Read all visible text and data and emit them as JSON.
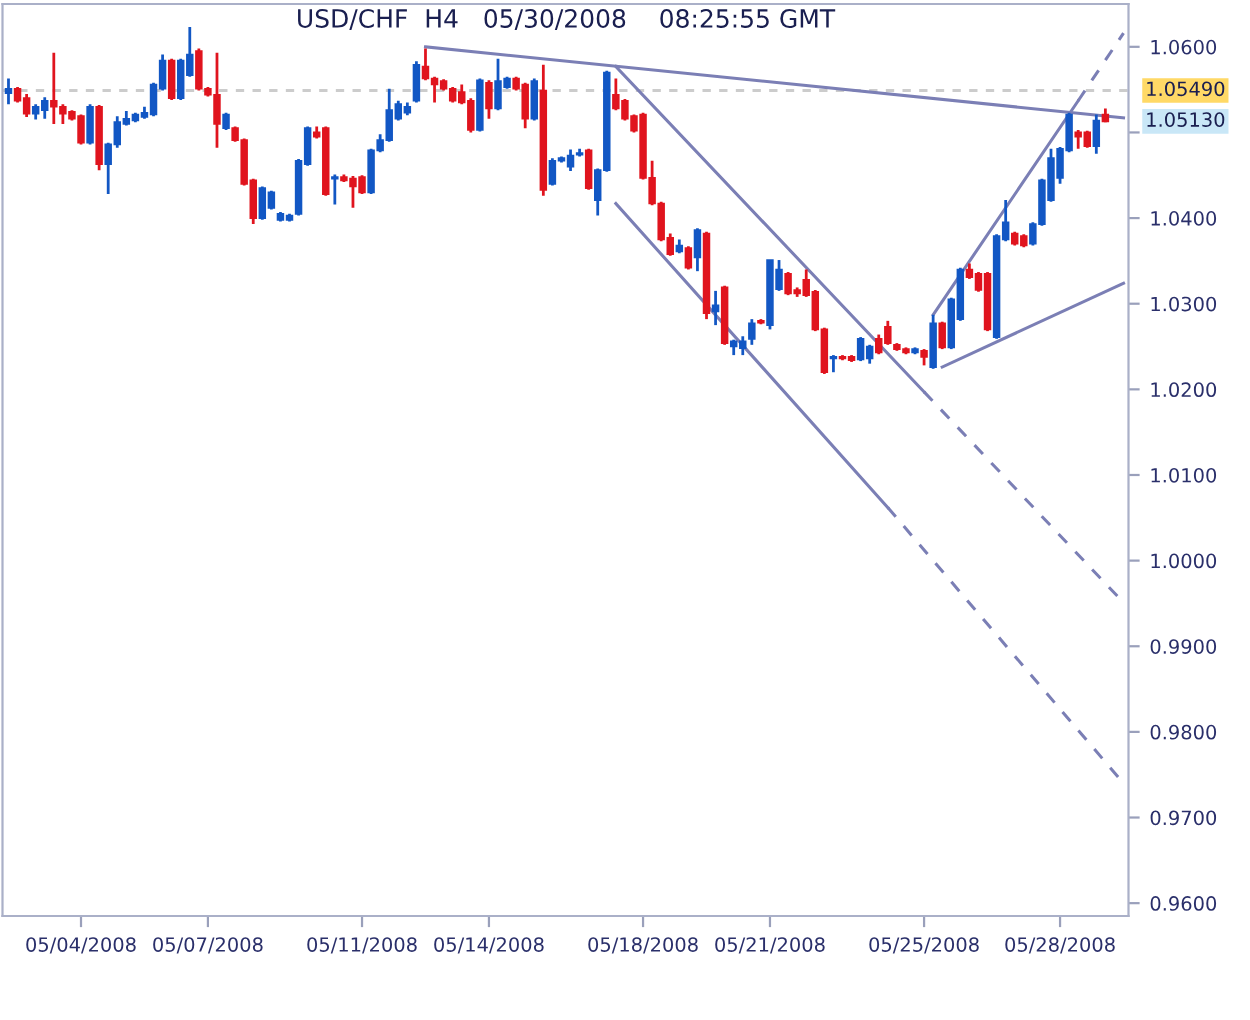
{
  "chart_data": {
    "type": "candlestick",
    "title": "USD/CHF  H4   05/30/2008    08:25:55 GMT",
    "categories": [
      null,
      null,
      null,
      null,
      null,
      null,
      null,
      null,
      "05/04/2008",
      null,
      null,
      null,
      null,
      null,
      null,
      null,
      null,
      null,
      null,
      null,
      null,
      null,
      "05/07/2008",
      null,
      null,
      null,
      null,
      null,
      null,
      null,
      null,
      null,
      null,
      null,
      null,
      null,
      null,
      null,
      null,
      "05/11/2008",
      null,
      null,
      null,
      null,
      null,
      null,
      null,
      null,
      null,
      null,
      null,
      null,
      null,
      "05/14/2008",
      null,
      null,
      null,
      null,
      null,
      null,
      null,
      null,
      null,
      null,
      null,
      null,
      null,
      null,
      null,
      null,
      "05/18/2008",
      null,
      null,
      null,
      null,
      null,
      null,
      null,
      null,
      null,
      null,
      null,
      null,
      null,
      "05/21/2008",
      null,
      null,
      null,
      null,
      null,
      null,
      null,
      null,
      null,
      null,
      null,
      null,
      null,
      null,
      null,
      null,
      "05/25/2008",
      null,
      null,
      null,
      null,
      null,
      null,
      null,
      null,
      null,
      null,
      null,
      null,
      null,
      null,
      "05/28/2008",
      null,
      null,
      null,
      null,
      null,
      null,
      null
    ],
    "ylim": [
      0.9585,
      1.065
    ],
    "yticks": [
      {
        "value": 0.96,
        "label": "0.9600"
      },
      {
        "value": 0.97,
        "label": "0.9700"
      },
      {
        "value": 0.98,
        "label": "0.9800"
      },
      {
        "value": 0.99,
        "label": "0.9900"
      },
      {
        "value": 1.0,
        "label": "1.0000"
      },
      {
        "value": 1.01,
        "label": "1.0100"
      },
      {
        "value": 1.02,
        "label": "1.0200"
      },
      {
        "value": 1.03,
        "label": "1.0300"
      },
      {
        "value": 1.04,
        "label": "1.0400"
      },
      {
        "value": 1.05,
        "label": null
      },
      {
        "value": 1.06,
        "label": "1.0600"
      }
    ],
    "ref_lines": [
      {
        "axis": "y",
        "value": 1.0549,
        "label": "1.05490",
        "color": "#cccccc",
        "line_style": "dashed"
      }
    ],
    "annotations": [
      "1.05130"
    ],
    "series": [
      {
        "type": "candlestick",
        "ohlc": [
          [
            1.0546,
            1.0563,
            1.0533,
            1.0551
          ],
          [
            1.0551,
            1.0553,
            1.0535,
            1.0537
          ],
          [
            1.054,
            1.0545,
            1.0518,
            1.0522
          ],
          [
            1.0522,
            1.0533,
            1.0515,
            1.053
          ],
          [
            1.0526,
            1.0541,
            1.0516,
            1.0537
          ],
          [
            1.0537,
            1.0593,
            1.051,
            1.053
          ],
          [
            1.053,
            1.0533,
            1.051,
            1.0522
          ],
          [
            1.0524,
            1.0526,
            1.0514,
            1.0516
          ],
          [
            1.0519,
            1.0521,
            1.0486,
            1.0488
          ],
          [
            1.0488,
            1.0533,
            1.0486,
            1.053
          ],
          [
            1.053,
            1.0532,
            1.0456,
            1.0463
          ],
          [
            1.0463,
            1.0488,
            1.0428,
            1.0486
          ],
          [
            1.0486,
            1.0519,
            1.0482,
            1.0512
          ],
          [
            1.051,
            1.0525,
            1.0508,
            1.0516
          ],
          [
            1.0514,
            1.0523,
            1.0512,
            1.0521
          ],
          [
            1.0518,
            1.053,
            1.0516,
            1.0523
          ],
          [
            1.0521,
            1.0558,
            1.0519,
            1.0556
          ],
          [
            1.0551,
            1.0591,
            1.0549,
            1.0584
          ],
          [
            1.0584,
            1.0586,
            1.0538,
            1.054
          ],
          [
            1.054,
            1.0586,
            1.0538,
            1.0584
          ],
          [
            1.0567,
            1.0623,
            1.0565,
            1.0591
          ],
          [
            1.0595,
            1.0598,
            1.0549,
            1.0551
          ],
          [
            1.0551,
            1.0553,
            1.0542,
            1.0544
          ],
          [
            1.0544,
            1.0593,
            1.0482,
            1.051
          ],
          [
            1.0505,
            1.0523,
            1.0503,
            1.0521
          ],
          [
            1.0505,
            1.0507,
            1.0489,
            1.0491
          ],
          [
            1.0491,
            1.0493,
            1.0438,
            1.044
          ],
          [
            1.0444,
            1.0446,
            1.0393,
            1.04
          ],
          [
            1.04,
            1.0437,
            1.0398,
            1.0435
          ],
          [
            1.0412,
            1.0432,
            1.041,
            1.043
          ],
          [
            1.0398,
            1.0407,
            1.0396,
            1.0405
          ],
          [
            1.0398,
            1.0405,
            1.0396,
            1.0403
          ],
          [
            1.0405,
            1.0469,
            1.0403,
            1.0467
          ],
          [
            1.0463,
            1.0507,
            1.0461,
            1.0505
          ],
          [
            1.05,
            1.0507,
            1.0493,
            1.0495
          ],
          [
            1.0505,
            1.0507,
            1.0426,
            1.0428
          ],
          [
            1.0446,
            1.0451,
            1.0416,
            1.0448
          ],
          [
            1.0448,
            1.0451,
            1.0442,
            1.0444
          ],
          [
            1.0446,
            1.0449,
            1.0412,
            1.0437
          ],
          [
            1.0448,
            1.045,
            1.0428,
            1.043
          ],
          [
            1.043,
            1.0481,
            1.0428,
            1.0479
          ],
          [
            1.0479,
            1.0498,
            1.0477,
            1.0491
          ],
          [
            1.0491,
            1.0551,
            1.0489,
            1.0526
          ],
          [
            1.0516,
            1.0537,
            1.0514,
            1.0533
          ],
          [
            1.0523,
            1.0535,
            1.052,
            1.053
          ],
          [
            1.0537,
            1.0583,
            1.0535,
            1.0579
          ],
          [
            1.0577,
            1.0598,
            1.0561,
            1.0563
          ],
          [
            1.0563,
            1.0565,
            1.0535,
            1.0556
          ],
          [
            1.056,
            1.0562,
            1.0549,
            1.0551
          ],
          [
            1.0551,
            1.0553,
            1.0535,
            1.0537
          ],
          [
            1.0547,
            1.0556,
            1.0533,
            1.0535
          ],
          [
            1.0537,
            1.054,
            1.05,
            1.0503
          ],
          [
            1.0503,
            1.0563,
            1.0501,
            1.0561
          ],
          [
            1.0558,
            1.0561,
            1.0516,
            1.0528
          ],
          [
            1.0528,
            1.0586,
            1.0526,
            1.056
          ],
          [
            1.0553,
            1.0565,
            1.0551,
            1.0563
          ],
          [
            1.0563,
            1.0565,
            1.0549,
            1.0551
          ],
          [
            1.0556,
            1.0558,
            1.0505,
            1.0516
          ],
          [
            1.0516,
            1.0563,
            1.0514,
            1.056
          ],
          [
            1.0549,
            1.0579,
            1.0426,
            1.0433
          ],
          [
            1.044,
            1.047,
            1.0438,
            1.0467
          ],
          [
            1.0467,
            1.0472,
            1.0465,
            1.047
          ],
          [
            1.046,
            1.048,
            1.0455,
            1.0473
          ],
          [
            1.0474,
            1.0481,
            1.0472,
            1.0476
          ],
          [
            1.0479,
            1.0481,
            1.0433,
            1.0435
          ],
          [
            1.0421,
            1.0458,
            1.0403,
            1.0456
          ],
          [
            1.0456,
            1.0572,
            1.0454,
            1.057
          ],
          [
            1.0544,
            1.0563,
            1.0526,
            1.0528
          ],
          [
            1.0537,
            1.0539,
            1.0514,
            1.0516
          ],
          [
            1.0519,
            1.0521,
            1.05,
            1.0502
          ],
          [
            1.0521,
            1.0523,
            1.0445,
            1.0447
          ],
          [
            1.0447,
            1.0467,
            1.0415,
            1.0417
          ],
          [
            1.0417,
            1.0419,
            1.0373,
            1.0375
          ],
          [
            1.0377,
            1.0382,
            1.0356,
            1.0358
          ],
          [
            1.0361,
            1.0375,
            1.0359,
            1.0368
          ],
          [
            1.0365,
            1.0367,
            1.034,
            1.0342
          ],
          [
            1.0354,
            1.0388,
            1.0338,
            1.0386
          ],
          [
            1.0382,
            1.0384,
            1.0282,
            1.0289
          ],
          [
            1.0291,
            1.0315,
            1.0275,
            1.0298
          ],
          [
            1.0319,
            1.0321,
            1.0252,
            1.0254
          ],
          [
            1.025,
            1.0258,
            1.024,
            1.0256
          ],
          [
            1.0248,
            1.0262,
            1.024,
            1.0256
          ],
          [
            1.0259,
            1.0282,
            1.0252,
            1.0277
          ],
          [
            1.028,
            1.0282,
            1.0276,
            1.0278
          ],
          [
            1.0275,
            1.0351,
            1.027,
            1.0351
          ],
          [
            1.0317,
            1.0351,
            1.0315,
            1.034
          ],
          [
            1.0335,
            1.0337,
            1.031,
            1.0312
          ],
          [
            1.0316,
            1.0319,
            1.0308,
            1.0312
          ],
          [
            1.0328,
            1.034,
            1.0308,
            1.031
          ],
          [
            1.0314,
            1.0316,
            1.0268,
            1.027
          ],
          [
            1.027,
            1.0272,
            1.0218,
            1.022
          ],
          [
            1.0236,
            1.024,
            1.022,
            1.0238
          ],
          [
            1.0238,
            1.024,
            1.0234,
            1.0236
          ],
          [
            1.0238,
            1.024,
            1.0232,
            1.0234
          ],
          [
            1.0235,
            1.0261,
            1.0233,
            1.0259
          ],
          [
            1.0236,
            1.0252,
            1.023,
            1.025
          ],
          [
            1.0259,
            1.0264,
            1.0241,
            1.0243
          ],
          [
            1.0273,
            1.028,
            1.0252,
            1.0254
          ],
          [
            1.0252,
            1.0254,
            1.0245,
            1.0247
          ],
          [
            1.0247,
            1.0249,
            1.0241,
            1.0243
          ],
          [
            1.0243,
            1.0249,
            1.0241,
            1.0247
          ],
          [
            1.0245,
            1.0247,
            1.0228,
            1.0238
          ],
          [
            1.0226,
            1.0287,
            1.0224,
            1.0277
          ],
          [
            1.0277,
            1.0279,
            1.0247,
            1.0249
          ],
          [
            1.0249,
            1.0307,
            1.0247,
            1.0305
          ],
          [
            1.0282,
            1.0342,
            1.028,
            1.034
          ],
          [
            1.034,
            1.0347,
            1.0329,
            1.0331
          ],
          [
            1.0335,
            1.0337,
            1.0314,
            1.0316
          ],
          [
            1.0335,
            1.0337,
            1.0268,
            1.027
          ],
          [
            1.0261,
            1.0381,
            1.0259,
            1.0379
          ],
          [
            1.0375,
            1.0421,
            1.0373,
            1.0395
          ],
          [
            1.0382,
            1.0384,
            1.0368,
            1.037
          ],
          [
            1.0379,
            1.0381,
            1.0366,
            1.0368
          ],
          [
            1.037,
            1.0395,
            1.0368,
            1.0393
          ],
          [
            1.0393,
            1.0446,
            1.0391,
            1.0444
          ],
          [
            1.0421,
            1.0481,
            1.0419,
            1.047
          ],
          [
            1.0447,
            1.0483,
            1.044,
            1.0481
          ],
          [
            1.0479,
            1.0523,
            1.0477,
            1.0521
          ],
          [
            1.05,
            1.0503,
            1.0481,
            1.0495
          ],
          [
            1.05,
            1.0502,
            1.0482,
            1.0484
          ],
          [
            1.0484,
            1.0521,
            1.0475,
            1.0514
          ],
          [
            1.0521,
            1.0528,
            1.0512,
            1.0513
          ],
          null,
          null
        ],
        "colors": [
          "#1257c4",
          "#e0141e",
          "#e0141e",
          "#1257c4",
          "#1257c4",
          "#e0141e",
          "#e0141e",
          "#e0141e",
          "#e0141e",
          "#1257c4",
          "#e0141e",
          "#1257c4",
          "#1257c4",
          "#1257c4",
          "#1257c4",
          "#1257c4",
          "#1257c4",
          "#1257c4",
          "#e0141e",
          "#1257c4",
          "#1257c4",
          "#e0141e",
          "#e0141e",
          "#e0141e",
          "#1257c4",
          "#e0141e",
          "#e0141e",
          "#e0141e",
          "#1257c4",
          "#1257c4",
          "#1257c4",
          "#1257c4",
          "#1257c4",
          "#1257c4",
          "#e0141e",
          "#e0141e",
          "#1257c4",
          "#e0141e",
          "#e0141e",
          "#e0141e",
          "#1257c4",
          "#1257c4",
          "#1257c4",
          "#1257c4",
          "#1257c4",
          "#1257c4",
          "#e0141e",
          "#e0141e",
          "#e0141e",
          "#e0141e",
          "#e0141e",
          "#e0141e",
          "#1257c4",
          "#e0141e",
          "#1257c4",
          "#1257c4",
          "#e0141e",
          "#e0141e",
          "#1257c4",
          "#e0141e",
          "#1257c4",
          "#1257c4",
          "#1257c4",
          "#1257c4",
          "#e0141e",
          "#1257c4",
          "#1257c4",
          "#e0141e",
          "#e0141e",
          "#e0141e",
          "#e0141e",
          "#e0141e",
          "#e0141e",
          "#e0141e",
          "#1257c4",
          "#e0141e",
          "#1257c4",
          "#e0141e",
          "#1257c4",
          "#e0141e",
          "#1257c4",
          "#1257c4",
          "#1257c4",
          "#e0141e",
          "#1257c4",
          "#1257c4",
          "#e0141e",
          "#e0141e",
          "#e0141e",
          "#e0141e",
          "#e0141e",
          "#1257c4",
          "#e0141e",
          "#e0141e",
          "#1257c4",
          "#1257c4",
          "#e0141e",
          "#e0141e",
          "#e0141e",
          "#e0141e",
          "#1257c4",
          "#e0141e",
          "#1257c4",
          "#e0141e",
          "#1257c4",
          "#1257c4",
          "#e0141e",
          "#e0141e",
          "#e0141e",
          "#1257c4",
          "#1257c4",
          "#e0141e",
          "#e0141e",
          "#1257c4",
          "#1257c4",
          "#1257c4",
          "#1257c4",
          "#1257c4",
          "#e0141e",
          "#e0141e",
          "#1257c4",
          "#e0141e",
          null,
          null
        ]
      },
      {
        "type": "line",
        "color": "#7b7fb5",
        "line_style": "solid",
        "values": [
          null,
          null,
          null,
          null,
          null,
          null,
          null,
          null,
          null,
          null,
          null,
          null,
          null,
          null,
          null,
          null,
          null,
          null,
          null,
          null,
          null,
          null,
          null,
          null,
          null,
          null,
          null,
          null,
          null,
          null,
          null,
          null,
          null,
          null,
          null,
          null,
          null,
          null,
          null,
          null,
          null,
          null,
          null,
          null,
          null,
          null,
          1.06,
          null,
          null,
          null,
          null,
          null,
          null,
          null,
          null,
          null,
          null,
          null,
          null,
          null,
          null,
          null,
          null,
          null,
          null,
          null,
          null,
          null,
          null,
          null,
          null,
          null,
          null,
          null,
          null,
          null,
          null,
          null,
          null,
          null,
          null,
          null,
          null,
          null,
          null,
          null,
          null,
          null,
          null,
          null,
          null,
          null,
          null,
          null,
          null,
          null,
          null,
          null,
          null,
          null,
          null,
          null,
          null,
          null,
          null,
          null,
          null,
          null,
          null,
          null,
          null,
          null,
          null,
          null,
          null,
          null,
          null,
          null,
          null,
          null,
          null,
          null,
          null,
          1.0517
        ]
      },
      {
        "type": "line",
        "color": "#7b7fb5",
        "line_style": "solid",
        "values": [
          null,
          null,
          null,
          null,
          null,
          null,
          null,
          null,
          null,
          null,
          null,
          null,
          null,
          null,
          null,
          null,
          null,
          null,
          null,
          null,
          null,
          null,
          null,
          null,
          null,
          null,
          null,
          null,
          null,
          null,
          null,
          null,
          null,
          null,
          null,
          null,
          null,
          null,
          null,
          null,
          null,
          null,
          null,
          null,
          null,
          null,
          null,
          null,
          null,
          null,
          null,
          null,
          null,
          null,
          null,
          null,
          null,
          null,
          null,
          null,
          null,
          null,
          null,
          null,
          null,
          null,
          null,
          1.0577,
          null,
          null,
          null,
          null,
          null,
          null,
          null,
          null,
          null,
          null,
          null,
          null,
          null,
          null,
          null,
          null,
          null,
          null,
          null,
          null,
          null,
          null,
          null,
          null,
          null,
          null,
          null,
          null,
          null,
          null,
          null,
          null,
          null,
          1.0197,
          null,
          null,
          null,
          null,
          null,
          null,
          null,
          null,
          null,
          null,
          null,
          null,
          null,
          null,
          null,
          null,
          null,
          null,
          null,
          null,
          null,
          null
        ]
      },
      {
        "type": "line",
        "color": "#7b7fb5",
        "line_style": "dashed",
        "values": [
          null,
          null,
          null,
          null,
          null,
          null,
          null,
          null,
          null,
          null,
          null,
          null,
          null,
          null,
          null,
          null,
          null,
          null,
          null,
          null,
          null,
          null,
          null,
          null,
          null,
          null,
          null,
          null,
          null,
          null,
          null,
          null,
          null,
          null,
          null,
          null,
          null,
          null,
          null,
          null,
          null,
          null,
          null,
          null,
          null,
          null,
          null,
          null,
          null,
          null,
          null,
          null,
          null,
          null,
          null,
          null,
          null,
          null,
          null,
          null,
          null,
          null,
          null,
          null,
          null,
          null,
          null,
          null,
          null,
          null,
          null,
          null,
          null,
          null,
          null,
          null,
          null,
          null,
          null,
          null,
          null,
          null,
          null,
          null,
          null,
          null,
          null,
          null,
          null,
          null,
          null,
          null,
          null,
          null,
          null,
          null,
          null,
          null,
          null,
          null,
          null,
          1.0197,
          null,
          null,
          null,
          null,
          null,
          null,
          null,
          null,
          null,
          null,
          null,
          null,
          null,
          null,
          null,
          null,
          null,
          null,
          null,
          null,
          null,
          0.9951
        ]
      },
      {
        "type": "line",
        "color": "#7b7fb5",
        "line_style": "solid",
        "values": [
          null,
          null,
          null,
          null,
          null,
          null,
          null,
          null,
          null,
          null,
          null,
          null,
          null,
          null,
          null,
          null,
          null,
          null,
          null,
          null,
          null,
          null,
          null,
          null,
          null,
          null,
          null,
          null,
          null,
          null,
          null,
          null,
          null,
          null,
          null,
          null,
          null,
          null,
          null,
          null,
          null,
          null,
          null,
          null,
          null,
          null,
          null,
          null,
          null,
          null,
          null,
          null,
          null,
          null,
          null,
          null,
          null,
          null,
          null,
          null,
          null,
          null,
          null,
          null,
          null,
          null,
          null,
          1.0417,
          null,
          null,
          null,
          null,
          null,
          null,
          null,
          null,
          null,
          null,
          null,
          null,
          null,
          null,
          null,
          null,
          null,
          null,
          null,
          null,
          null,
          null,
          null,
          null,
          null,
          null,
          null,
          null,
          null,
          1.0062,
          null,
          null,
          null,
          null,
          null,
          null,
          null,
          null,
          null,
          null,
          null,
          null,
          null,
          null,
          null,
          null,
          null,
          null,
          null,
          null,
          null,
          null,
          null,
          null,
          null,
          null
        ]
      },
      {
        "type": "line",
        "color": "#7b7fb5",
        "line_style": "dashed",
        "values": [
          null,
          null,
          null,
          null,
          null,
          null,
          null,
          null,
          null,
          null,
          null,
          null,
          null,
          null,
          null,
          null,
          null,
          null,
          null,
          null,
          null,
          null,
          null,
          null,
          null,
          null,
          null,
          null,
          null,
          null,
          null,
          null,
          null,
          null,
          null,
          null,
          null,
          null,
          null,
          null,
          null,
          null,
          null,
          null,
          null,
          null,
          null,
          null,
          null,
          null,
          null,
          null,
          null,
          null,
          null,
          null,
          null,
          null,
          null,
          null,
          null,
          null,
          null,
          null,
          null,
          null,
          null,
          null,
          null,
          null,
          null,
          null,
          null,
          null,
          null,
          null,
          null,
          null,
          null,
          null,
          null,
          null,
          null,
          null,
          null,
          null,
          null,
          null,
          null,
          null,
          null,
          null,
          null,
          null,
          null,
          null,
          null,
          1.0062,
          null,
          null,
          null,
          null,
          null,
          null,
          null,
          null,
          null,
          null,
          null,
          null,
          null,
          null,
          null,
          null,
          null,
          null,
          null,
          null,
          null,
          null,
          null,
          null,
          null,
          0.974
        ]
      },
      {
        "type": "line",
        "color": "#7b7fb5",
        "line_style": "solid",
        "values": [
          null,
          null,
          null,
          null,
          null,
          null,
          null,
          null,
          null,
          null,
          null,
          null,
          null,
          null,
          null,
          null,
          null,
          null,
          null,
          null,
          null,
          null,
          null,
          null,
          null,
          null,
          null,
          null,
          null,
          null,
          null,
          null,
          null,
          null,
          null,
          null,
          null,
          null,
          null,
          null,
          null,
          null,
          null,
          null,
          null,
          null,
          null,
          null,
          null,
          null,
          null,
          null,
          null,
          null,
          null,
          null,
          null,
          null,
          null,
          null,
          null,
          null,
          null,
          null,
          null,
          null,
          null,
          null,
          null,
          null,
          null,
          null,
          null,
          null,
          null,
          null,
          null,
          null,
          null,
          null,
          null,
          null,
          null,
          null,
          null,
          null,
          null,
          null,
          null,
          null,
          null,
          null,
          null,
          null,
          null,
          null,
          null,
          null,
          null,
          null,
          null,
          null,
          1.0287,
          null,
          null,
          null,
          null,
          null,
          null,
          null,
          null,
          null,
          null,
          null,
          null,
          null,
          null,
          null,
          1.0537,
          null,
          null,
          null,
          null,
          null
        ]
      },
      {
        "type": "line",
        "color": "#7b7fb5",
        "line_style": "dashed",
        "values": [
          null,
          null,
          null,
          null,
          null,
          null,
          null,
          null,
          null,
          null,
          null,
          null,
          null,
          null,
          null,
          null,
          null,
          null,
          null,
          null,
          null,
          null,
          null,
          null,
          null,
          null,
          null,
          null,
          null,
          null,
          null,
          null,
          null,
          null,
          null,
          null,
          null,
          null,
          null,
          null,
          null,
          null,
          null,
          null,
          null,
          null,
          null,
          null,
          null,
          null,
          null,
          null,
          null,
          null,
          null,
          null,
          null,
          null,
          null,
          null,
          null,
          null,
          null,
          null,
          null,
          null,
          null,
          null,
          null,
          null,
          null,
          null,
          null,
          null,
          null,
          null,
          null,
          null,
          null,
          null,
          null,
          null,
          null,
          null,
          null,
          null,
          null,
          null,
          null,
          null,
          null,
          null,
          null,
          null,
          null,
          null,
          null,
          null,
          null,
          null,
          null,
          null,
          null,
          null,
          null,
          null,
          null,
          null,
          null,
          null,
          null,
          null,
          null,
          null,
          null,
          null,
          null,
          null,
          1.0537,
          null,
          null,
          null,
          null,
          1.0616
        ]
      },
      {
        "type": "line",
        "color": "#7b7fb5",
        "line_style": "solid",
        "values": [
          null,
          null,
          null,
          null,
          null,
          null,
          null,
          null,
          null,
          null,
          null,
          null,
          null,
          null,
          null,
          null,
          null,
          null,
          null,
          null,
          null,
          null,
          null,
          null,
          null,
          null,
          null,
          null,
          null,
          null,
          null,
          null,
          null,
          null,
          null,
          null,
          null,
          null,
          null,
          null,
          null,
          null,
          null,
          null,
          null,
          null,
          null,
          null,
          null,
          null,
          null,
          null,
          null,
          null,
          null,
          null,
          null,
          null,
          null,
          null,
          null,
          null,
          null,
          null,
          null,
          null,
          null,
          null,
          null,
          null,
          null,
          null,
          null,
          null,
          null,
          null,
          null,
          null,
          null,
          null,
          null,
          null,
          null,
          null,
          null,
          null,
          null,
          null,
          null,
          null,
          null,
          null,
          null,
          null,
          null,
          null,
          null,
          null,
          null,
          null,
          null,
          null,
          null,
          1.0226,
          null,
          null,
          null,
          null,
          null,
          null,
          null,
          null,
          null,
          null,
          null,
          null,
          null,
          null,
          null,
          null,
          null,
          null,
          null,
          1.0324
        ]
      }
    ]
  }
}
